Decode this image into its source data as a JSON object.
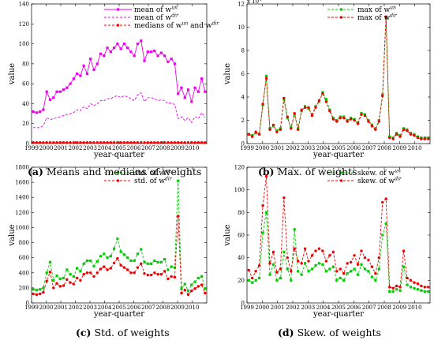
{
  "chart_data": [
    {
      "type": "line",
      "caption_label": "(a)",
      "caption_text": "Means and medians of weights",
      "xlabel": "year-quarter",
      "ylabel": "value",
      "x_tick_labels": [
        "1999",
        "2000",
        "2001",
        "2002",
        "2003",
        "2004",
        "2005",
        "2006",
        "2007",
        "2008",
        "2009",
        "2010"
      ],
      "xlim": [
        1999,
        2011
      ],
      "ylim": [
        0,
        140
      ],
      "y_ticks": [
        0,
        20,
        40,
        60,
        80,
        100,
        120,
        140
      ],
      "y_scale_label": "",
      "legend_position": "top-right",
      "series": [
        {
          "name": "mean of w^un",
          "legend_base": "mean of w",
          "legend_sup": "un",
          "color": "#ee00ee",
          "dash": "solid",
          "marker": "square",
          "values": [
            32,
            31,
            32,
            34,
            52,
            44,
            46,
            52,
            52,
            54,
            56,
            60,
            65,
            70,
            68,
            78,
            70,
            85,
            74,
            80,
            90,
            88,
            96,
            92,
            96,
            100,
            95,
            100,
            96,
            92,
            88,
            100,
            103,
            83,
            92,
            92,
            93,
            88,
            91,
            88,
            82,
            85,
            80,
            50,
            56,
            46,
            54,
            42,
            56,
            52,
            65,
            52
          ]
        },
        {
          "name": "mean of w^dir",
          "legend_base": "mean of w",
          "legend_sup": "dir",
          "color": "#ee00ee",
          "dash": "dashed",
          "marker": "none",
          "values": [
            16,
            16,
            16,
            18,
            26,
            24,
            25,
            26,
            27,
            28,
            29,
            30,
            31,
            34,
            33,
            37,
            35,
            40,
            38,
            40,
            43,
            43,
            45,
            45,
            47,
            48,
            46,
            48,
            47,
            45,
            43,
            49,
            51,
            42,
            46,
            46,
            45,
            43,
            44,
            43,
            40,
            41,
            39,
            25,
            27,
            23,
            26,
            21,
            27,
            25,
            31,
            26
          ]
        },
        {
          "name": "medians of w^un and w^dir",
          "legend_base": "medians of w",
          "legend_sup": "un",
          "legend_mid": " and w",
          "legend_sup2": "dir",
          "color": "#ff0000",
          "dash": "dashed",
          "marker": "star",
          "values": [
            1,
            1,
            1,
            1,
            1,
            1,
            1,
            1,
            1,
            1,
            1,
            1,
            1,
            1,
            1,
            1,
            1,
            1,
            1,
            1,
            1,
            1,
            1,
            1,
            1,
            1,
            1,
            1,
            1,
            1,
            1,
            1,
            1,
            1,
            1,
            1,
            1,
            1,
            1,
            1,
            1,
            1,
            1,
            1,
            1,
            1,
            1,
            1,
            1,
            1,
            1,
            1
          ]
        }
      ]
    },
    {
      "type": "line",
      "caption_label": "(b)",
      "caption_text": "Max. of weights",
      "xlabel": "year-quarter",
      "ylabel": "value",
      "x_tick_labels": [
        "1999",
        "2000",
        "2001",
        "2002",
        "2003",
        "2004",
        "2005",
        "2006",
        "2007",
        "2008",
        "2009",
        "2010"
      ],
      "xlim": [
        1999,
        2011
      ],
      "ylim": [
        0,
        12
      ],
      "y_ticks": [
        0,
        2,
        4,
        6,
        8,
        10,
        12
      ],
      "y_scale_label": "x 10^4",
      "y_scale_base": "x 10",
      "y_scale_exp": "4",
      "legend_position": "top-right",
      "series": [
        {
          "name": "max of w^un",
          "legend_base": "max of w",
          "legend_sup": "un",
          "color": "#00cc00",
          "dash": "dashed",
          "marker": "square",
          "values": [
            0.8,
            0.7,
            0.9,
            0.8,
            3.3,
            5.8,
            1.3,
            1.5,
            1.1,
            1.3,
            3.8,
            2.2,
            1.4,
            2.5,
            1.3,
            2.8,
            3.2,
            3.0,
            2.5,
            3.2,
            3.6,
            4.4,
            3.8,
            2.9,
            2.2,
            2.0,
            2.3,
            2.3,
            2.0,
            2.2,
            2.1,
            1.8,
            2.6,
            2.5,
            2.0,
            1.6,
            1.3,
            2.0,
            4.2,
            10.8,
            0.6,
            0.5,
            0.9,
            0.7,
            1.3,
            1.2,
            0.9,
            0.8,
            0.6,
            0.5,
            0.5,
            0.5
          ]
        },
        {
          "name": "max of w^dir",
          "legend_base": "max of w",
          "legend_sup": "dir",
          "color": "#ee0000",
          "dash": "dashed",
          "marker": "star",
          "values": [
            0.8,
            0.6,
            1.0,
            0.8,
            3.4,
            5.6,
            1.2,
            1.6,
            1.0,
            1.2,
            3.9,
            2.3,
            1.3,
            2.6,
            1.2,
            2.9,
            3.1,
            3.1,
            2.4,
            3.1,
            3.7,
            4.3,
            3.6,
            2.8,
            2.1,
            1.9,
            2.2,
            2.2,
            1.9,
            2.1,
            2.0,
            1.7,
            2.5,
            2.4,
            1.9,
            1.5,
            1.2,
            1.9,
            4.1,
            10.9,
            0.5,
            0.4,
            0.8,
            0.6,
            1.2,
            1.1,
            0.8,
            0.7,
            0.5,
            0.4,
            0.4,
            0.4
          ]
        }
      ]
    },
    {
      "type": "line",
      "caption_label": "(c)",
      "caption_text": "Std. of weights",
      "xlabel": "year-quarter",
      "ylabel": "value",
      "x_tick_labels": [
        "1999",
        "2000",
        "2001",
        "2002",
        "2003",
        "2004",
        "2005",
        "2006",
        "2007",
        "2008",
        "2009",
        "2010"
      ],
      "xlim": [
        1999,
        2011
      ],
      "ylim": [
        0,
        1800
      ],
      "y_ticks": [
        0,
        200,
        400,
        600,
        800,
        1000,
        1200,
        1400,
        1600,
        1800
      ],
      "y_scale_label": "",
      "legend_position": "top-right",
      "series": [
        {
          "name": "std. of w^un",
          "legend_base": "std. of w",
          "legend_sup": "un",
          "color": "#00cc00",
          "dash": "dashed",
          "marker": "square",
          "values": [
            180,
            170,
            180,
            200,
            400,
            540,
            300,
            360,
            320,
            330,
            440,
            380,
            350,
            460,
            420,
            520,
            560,
            560,
            490,
            550,
            620,
            650,
            600,
            620,
            720,
            850,
            680,
            640,
            600,
            560,
            560,
            650,
            710,
            540,
            520,
            520,
            560,
            540,
            540,
            580,
            440,
            480,
            470,
            1620,
            190,
            250,
            160,
            240,
            280,
            330,
            350,
            190
          ]
        },
        {
          "name": "std. of w^dir",
          "legend_base": "std. of w",
          "legend_sup": "dir",
          "color": "#ee0000",
          "dash": "dashed",
          "marker": "star",
          "values": [
            120,
            110,
            120,
            140,
            290,
            410,
            200,
            260,
            220,
            230,
            310,
            270,
            250,
            330,
            300,
            380,
            400,
            400,
            350,
            400,
            450,
            480,
            440,
            460,
            530,
            590,
            500,
            470,
            440,
            400,
            400,
            470,
            520,
            390,
            370,
            370,
            400,
            380,
            380,
            420,
            320,
            350,
            340,
            1150,
            130,
            170,
            110,
            160,
            190,
            220,
            240,
            130
          ]
        }
      ]
    },
    {
      "type": "line",
      "caption_label": "(d)",
      "caption_text": "Skew. of weights",
      "xlabel": "year-quarter",
      "ylabel": "value",
      "x_tick_labels": [
        "1999",
        "2000",
        "2001",
        "2002",
        "2003",
        "2004",
        "2005",
        "2006",
        "2007",
        "2008",
        "2009",
        "2010"
      ],
      "xlim": [
        1999,
        2011
      ],
      "ylim": [
        0,
        120
      ],
      "y_ticks": [
        0,
        20,
        40,
        60,
        80,
        100,
        120
      ],
      "y_scale_label": "",
      "legend_position": "top-right",
      "series": [
        {
          "name": "skew. of w^un",
          "legend_base": "skew. of w",
          "legend_sup": "un",
          "color": "#00cc00",
          "dash": "dashed",
          "marker": "square",
          "values": [
            20,
            18,
            20,
            22,
            62,
            80,
            25,
            34,
            20,
            22,
            45,
            30,
            20,
            65,
            28,
            25,
            35,
            28,
            30,
            33,
            35,
            34,
            28,
            30,
            32,
            20,
            22,
            20,
            26,
            28,
            30,
            25,
            34,
            30,
            28,
            23,
            20,
            30,
            60,
            70,
            10,
            10,
            12,
            11,
            32,
            16,
            14,
            13,
            12,
            11,
            10,
            10
          ]
        },
        {
          "name": "skew. of w^dir",
          "legend_base": "skew. of w",
          "legend_sup": "dir",
          "color": "#ee0000",
          "dash": "dashed",
          "marker": "star",
          "values": [
            29,
            22,
            28,
            33,
            86,
            112,
            35,
            45,
            27,
            30,
            93,
            40,
            28,
            48,
            37,
            35,
            48,
            37,
            42,
            46,
            48,
            46,
            37,
            42,
            45,
            28,
            30,
            26,
            35,
            36,
            42,
            34,
            46,
            40,
            38,
            32,
            26,
            40,
            89,
            92,
            14,
            13,
            15,
            14,
            46,
            22,
            20,
            18,
            17,
            15,
            14,
            14
          ]
        }
      ]
    }
  ]
}
